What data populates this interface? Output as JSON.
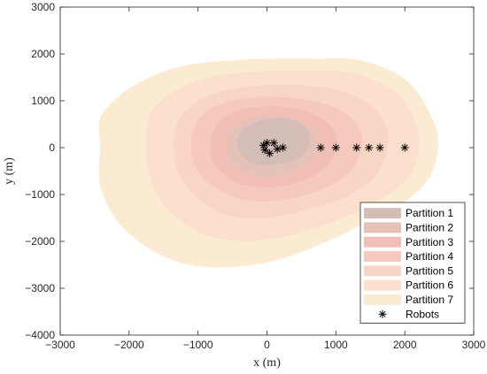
{
  "chart_data": {
    "type": "area",
    "title": "",
    "xlabel": "x (m)",
    "ylabel": "y (m)",
    "xlim": [
      -3000,
      3000
    ],
    "ylim": [
      -4000,
      3000
    ],
    "xticks": [
      -3000,
      -2000,
      -1000,
      0,
      1000,
      2000,
      3000
    ],
    "yticks": [
      -4000,
      -3000,
      -2000,
      -1000,
      0,
      1000,
      2000,
      3000
    ],
    "xtick_labels": [
      "−3000",
      "−2000",
      "−1000",
      "0",
      "1000",
      "2000",
      "3000"
    ],
    "ytick_labels": [
      "−4000",
      "−3000",
      "−2000",
      "−1000",
      "0",
      "1000",
      "2000",
      "3000"
    ],
    "grid": false,
    "legend_position": "bottom-right",
    "partitions": [
      {
        "name": "Partition 7",
        "color": "#fcebd3",
        "points": [
          [
            -2400,
            700
          ],
          [
            -1900,
            1350
          ],
          [
            -1200,
            1750
          ],
          [
            -300,
            1880
          ],
          [
            700,
            1900
          ],
          [
            1400,
            1850
          ],
          [
            2050,
            1400
          ],
          [
            2420,
            550
          ],
          [
            2480,
            -50
          ],
          [
            2350,
            -650
          ],
          [
            2000,
            -1150
          ],
          [
            1500,
            -1550
          ],
          [
            800,
            -2050
          ],
          [
            0,
            -2450
          ],
          [
            -900,
            -2550
          ],
          [
            -1600,
            -2250
          ],
          [
            -2150,
            -1600
          ],
          [
            -2420,
            -800
          ],
          [
            -2420,
            0
          ]
        ]
      },
      {
        "name": "Partition 6",
        "color": "#fbe1cd",
        "points": [
          [
            -1700,
            700
          ],
          [
            -1400,
            1150
          ],
          [
            -900,
            1480
          ],
          [
            -200,
            1620
          ],
          [
            600,
            1650
          ],
          [
            1300,
            1580
          ],
          [
            1900,
            1150
          ],
          [
            2180,
            450
          ],
          [
            2200,
            -100
          ],
          [
            2050,
            -650
          ],
          [
            1650,
            -1100
          ],
          [
            1100,
            -1500
          ],
          [
            400,
            -1850
          ],
          [
            -300,
            -2000
          ],
          [
            -900,
            -1850
          ],
          [
            -1350,
            -1450
          ],
          [
            -1650,
            -850
          ],
          [
            -1750,
            -100
          ]
        ]
      },
      {
        "name": "Partition 5",
        "color": "#f9d5c6",
        "points": [
          [
            -1300,
            550
          ],
          [
            -1050,
            950
          ],
          [
            -650,
            1200
          ],
          [
            -100,
            1330
          ],
          [
            500,
            1330
          ],
          [
            1100,
            1200
          ],
          [
            1550,
            850
          ],
          [
            1750,
            350
          ],
          [
            1720,
            -150
          ],
          [
            1550,
            -650
          ],
          [
            1150,
            -1050
          ],
          [
            600,
            -1320
          ],
          [
            0,
            -1500
          ],
          [
            -550,
            -1450
          ],
          [
            -950,
            -1150
          ],
          [
            -1250,
            -650
          ],
          [
            -1350,
            -50
          ]
        ]
      },
      {
        "name": "Partition 4",
        "color": "#f5c9bd",
        "points": [
          [
            -1050,
            450
          ],
          [
            -850,
            800
          ],
          [
            -500,
            1000
          ],
          [
            -50,
            1080
          ],
          [
            450,
            1050
          ],
          [
            900,
            900
          ],
          [
            1250,
            600
          ],
          [
            1380,
            200
          ],
          [
            1320,
            -250
          ],
          [
            1100,
            -650
          ],
          [
            700,
            -950
          ],
          [
            200,
            -1120
          ],
          [
            -300,
            -1120
          ],
          [
            -700,
            -900
          ],
          [
            -980,
            -550
          ],
          [
            -1100,
            -50
          ]
        ]
      },
      {
        "name": "Partition 3",
        "color": "#f1bfb5",
        "points": [
          [
            -780,
            350
          ],
          [
            -620,
            650
          ],
          [
            -350,
            820
          ],
          [
            0,
            880
          ],
          [
            380,
            850
          ],
          [
            720,
            680
          ],
          [
            950,
            420
          ],
          [
            1020,
            80
          ],
          [
            930,
            -280
          ],
          [
            700,
            -580
          ],
          [
            350,
            -780
          ],
          [
            -50,
            -850
          ],
          [
            -420,
            -750
          ],
          [
            -680,
            -500
          ],
          [
            -820,
            -150
          ]
        ]
      },
      {
        "name": "Partition 2",
        "color": "#e5c2b7",
        "points": [
          [
            -560,
            250
          ],
          [
            -470,
            470
          ],
          [
            -280,
            620
          ],
          [
            -30,
            680
          ],
          [
            250,
            660
          ],
          [
            500,
            540
          ],
          [
            690,
            320
          ],
          [
            740,
            30
          ],
          [
            650,
            -250
          ],
          [
            450,
            -470
          ],
          [
            180,
            -600
          ],
          [
            -120,
            -620
          ],
          [
            -380,
            -500
          ],
          [
            -540,
            -280
          ],
          [
            -600,
            0
          ]
        ]
      },
      {
        "name": "Partition 1",
        "color": "#d4bcb7",
        "points": [
          [
            -420,
            220
          ],
          [
            -320,
            420
          ],
          [
            -120,
            560
          ],
          [
            150,
            630
          ],
          [
            380,
            590
          ],
          [
            560,
            440
          ],
          [
            620,
            220
          ],
          [
            580,
            -40
          ],
          [
            450,
            -230
          ],
          [
            250,
            -330
          ],
          [
            0,
            -380
          ],
          [
            -230,
            -320
          ],
          [
            -370,
            -160
          ],
          [
            -430,
            40
          ]
        ]
      }
    ],
    "legend_entries": [
      "Partition 1",
      "Partition 2",
      "Partition 3",
      "Partition 4",
      "Partition 5",
      "Partition 6",
      "Partition 7",
      "Robots"
    ],
    "robots": {
      "name": "Robots",
      "marker": "*",
      "points": [
        [
          -50,
          50
        ],
        [
          0,
          100
        ],
        [
          100,
          100
        ],
        [
          -30,
          -50
        ],
        [
          40,
          -120
        ],
        [
          150,
          -30
        ],
        [
          230,
          0
        ],
        [
          780,
          0
        ],
        [
          1000,
          0
        ],
        [
          1300,
          0
        ],
        [
          1480,
          0
        ],
        [
          1640,
          0
        ],
        [
          2000,
          0
        ]
      ]
    }
  }
}
